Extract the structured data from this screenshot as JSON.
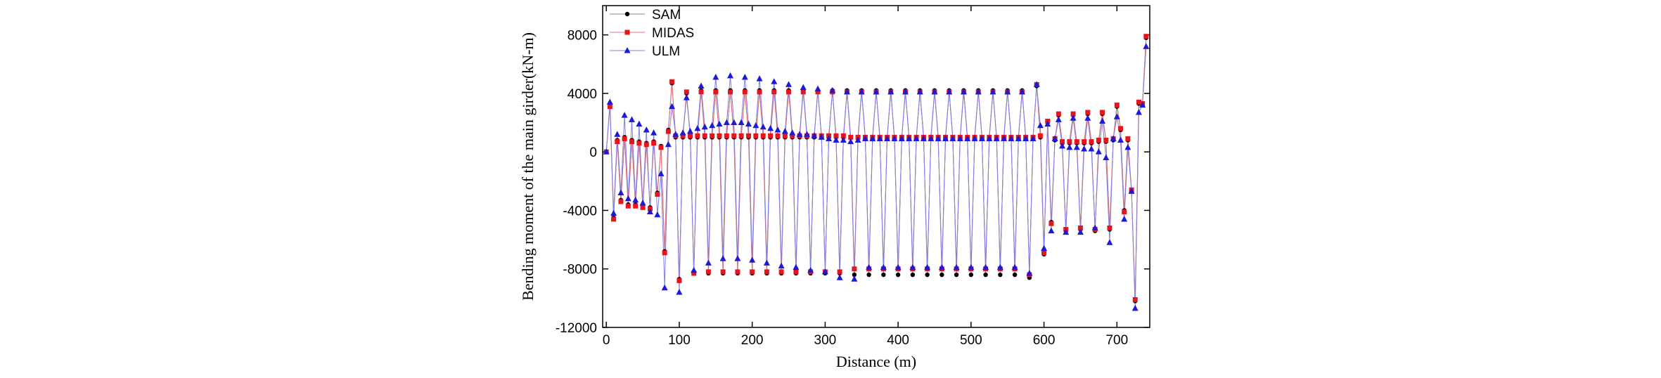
{
  "chart_data": {
    "type": "line",
    "x_label": "Distance (m)",
    "y_label": "Bending moment of the main girder(kN-m)",
    "xlim": [
      -5,
      745
    ],
    "xticks": [
      0,
      100,
      200,
      300,
      400,
      500,
      600,
      700
    ],
    "ylim": [
      -12000,
      10000
    ],
    "yticks": [
      -12000,
      -8000,
      -4000,
      0,
      4000,
      8000
    ],
    "legend": "upper left",
    "x": [
      0,
      5,
      10,
      15,
      20,
      25,
      30,
      35,
      40,
      45,
      50,
      55,
      60,
      65,
      70,
      75,
      80,
      85,
      90,
      95,
      100,
      105,
      110,
      115,
      120,
      125,
      130,
      135,
      140,
      145,
      150,
      155,
      160,
      165,
      170,
      175,
      180,
      185,
      190,
      195,
      200,
      205,
      210,
      215,
      220,
      225,
      230,
      235,
      240,
      245,
      250,
      255,
      260,
      265,
      270,
      275,
      280,
      285,
      290,
      295,
      300,
      305,
      310,
      315,
      320,
      325,
      330,
      335,
      340,
      345,
      350,
      355,
      360,
      365,
      370,
      375,
      380,
      385,
      390,
      395,
      400,
      405,
      410,
      415,
      420,
      425,
      430,
      435,
      440,
      445,
      450,
      455,
      460,
      465,
      470,
      475,
      480,
      485,
      490,
      495,
      500,
      505,
      510,
      515,
      520,
      525,
      530,
      535,
      540,
      545,
      550,
      555,
      560,
      565,
      570,
      575,
      580,
      585,
      590,
      595,
      600,
      605,
      610,
      615,
      620,
      625,
      630,
      635,
      640,
      645,
      650,
      655,
      660,
      665,
      670,
      675,
      680,
      685,
      690,
      695,
      700,
      705,
      710,
      715,
      720,
      725,
      730,
      735,
      740
    ],
    "series": [
      {
        "name": "SAM",
        "color": "#000000",
        "line_color": "#8a7fa0",
        "marker": "circle",
        "values": [
          0,
          3200,
          -4500,
          800,
          -3300,
          1000,
          -3600,
          800,
          -3600,
          700,
          -3700,
          600,
          -3800,
          700,
          -2800,
          400,
          -6800,
          1500,
          4700,
          1000,
          -8700,
          1000,
          4000,
          1000,
          -8200,
          1000,
          4200,
          1000,
          -8300,
          1000,
          4200,
          1000,
          -8300,
          1000,
          4200,
          1000,
          -8300,
          1000,
          4200,
          1000,
          -8300,
          1000,
          4200,
          1000,
          -8300,
          1000,
          4200,
          1000,
          -8300,
          1000,
          4200,
          1000,
          -8300,
          1000,
          4200,
          1000,
          -8300,
          1000,
          4200,
          1000,
          -8300,
          1000,
          4200,
          1000,
          -8300,
          1000,
          4200,
          1000,
          -8400,
          1000,
          4200,
          1000,
          -8400,
          1000,
          4200,
          1000,
          -8400,
          1000,
          4200,
          1000,
          -8400,
          1000,
          4200,
          1000,
          -8400,
          1000,
          4200,
          1000,
          -8400,
          1000,
          4200,
          1000,
          -8400,
          1000,
          4200,
          1000,
          -8400,
          1000,
          4200,
          1000,
          -8400,
          1000,
          4200,
          1000,
          -8400,
          1000,
          4200,
          1000,
          -8400,
          1000,
          4200,
          1000,
          -8400,
          1000,
          4200,
          1000,
          -8600,
          1000,
          4500,
          1000,
          -7000,
          2000,
          -4800,
          800,
          2500,
          600,
          -5400,
          600,
          2500,
          600,
          -5300,
          600,
          2600,
          600,
          -5400,
          700,
          2600,
          700,
          -5300,
          800,
          3100,
          1500,
          -4000,
          800,
          -2700,
          -10200,
          3300,
          3300,
          7800
        ]
      },
      {
        "name": "MIDAS",
        "color": "#e8141b",
        "line_color": "#e07070",
        "marker": "square",
        "values": [
          0,
          3100,
          -4600,
          700,
          -3400,
          900,
          -3700,
          700,
          -3700,
          600,
          -3800,
          500,
          -3900,
          600,
          -2900,
          300,
          -6900,
          1400,
          4800,
          1100,
          -8800,
          1100,
          4100,
          1100,
          -8300,
          1100,
          4100,
          1100,
          -8200,
          1100,
          4100,
          1100,
          -8200,
          1100,
          4100,
          1100,
          -8200,
          1100,
          4100,
          1100,
          -8200,
          1100,
          4100,
          1100,
          -8200,
          1100,
          4100,
          1100,
          -8200,
          1100,
          4100,
          1100,
          -8200,
          1100,
          4100,
          1100,
          -8200,
          1100,
          4100,
          1100,
          -8200,
          1100,
          4100,
          1100,
          -8200,
          1100,
          4100,
          1000,
          -8000,
          1000,
          4100,
          1000,
          -8000,
          1000,
          4100,
          1000,
          -8000,
          1000,
          4100,
          1000,
          -8000,
          1000,
          4100,
          1000,
          -8000,
          1000,
          4100,
          1000,
          -8000,
          1000,
          4100,
          1000,
          -8000,
          1000,
          4100,
          1000,
          -8000,
          1000,
          4100,
          1000,
          -8000,
          1000,
          4100,
          1000,
          -8000,
          1000,
          4100,
          1000,
          -8000,
          1000,
          4100,
          1000,
          -8000,
          1000,
          4100,
          1000,
          -8400,
          1000,
          4600,
          1100,
          -6900,
          2100,
          -4900,
          900,
          2600,
          700,
          -5300,
          700,
          2600,
          700,
          -5200,
          700,
          2700,
          700,
          -5300,
          800,
          2700,
          800,
          -5200,
          900,
          3200,
          1600,
          -4100,
          900,
          -2600,
          -10100,
          3400,
          3300,
          7900
        ]
      },
      {
        "name": "ULM",
        "color": "#1a1ad8",
        "line_color": "#8080e8",
        "marker": "triangle",
        "values": [
          0,
          3400,
          -4200,
          1200,
          -2800,
          2500,
          -3200,
          2200,
          -3300,
          1900,
          -3500,
          1500,
          -4100,
          1300,
          -4300,
          -1500,
          -9300,
          500,
          3100,
          1200,
          -9600,
          1300,
          3700,
          1400,
          -8100,
          1600,
          4500,
          1700,
          -7600,
          1800,
          5100,
          1900,
          -7300,
          2000,
          5200,
          2000,
          -7300,
          2000,
          5100,
          1900,
          -7400,
          1800,
          5000,
          1700,
          -7600,
          1600,
          4800,
          1500,
          -7800,
          1400,
          4600,
          1300,
          -7900,
          1200,
          4400,
          1200,
          -8100,
          1100,
          4300,
          1000,
          -8200,
          900,
          4200,
          800,
          -8600,
          800,
          4100,
          700,
          -8700,
          800,
          4100,
          900,
          -7900,
          900,
          4100,
          900,
          -7900,
          900,
          4100,
          900,
          -7900,
          900,
          4100,
          900,
          -7900,
          900,
          4100,
          900,
          -7900,
          900,
          4100,
          900,
          -7900,
          900,
          4100,
          900,
          -7900,
          900,
          4100,
          900,
          -7900,
          900,
          4100,
          900,
          -7900,
          900,
          4100,
          900,
          -7900,
          900,
          4100,
          900,
          -7900,
          900,
          4100,
          900,
          -8300,
          900,
          4600,
          1800,
          -6600,
          1900,
          -5400,
          900,
          2200,
          400,
          -5500,
          300,
          2300,
          300,
          -5500,
          200,
          2300,
          200,
          -5200,
          0,
          2100,
          -400,
          -6200,
          900,
          2400,
          800,
          -4600,
          300,
          -2700,
          -10700,
          2700,
          3200,
          7200
        ]
      }
    ]
  }
}
